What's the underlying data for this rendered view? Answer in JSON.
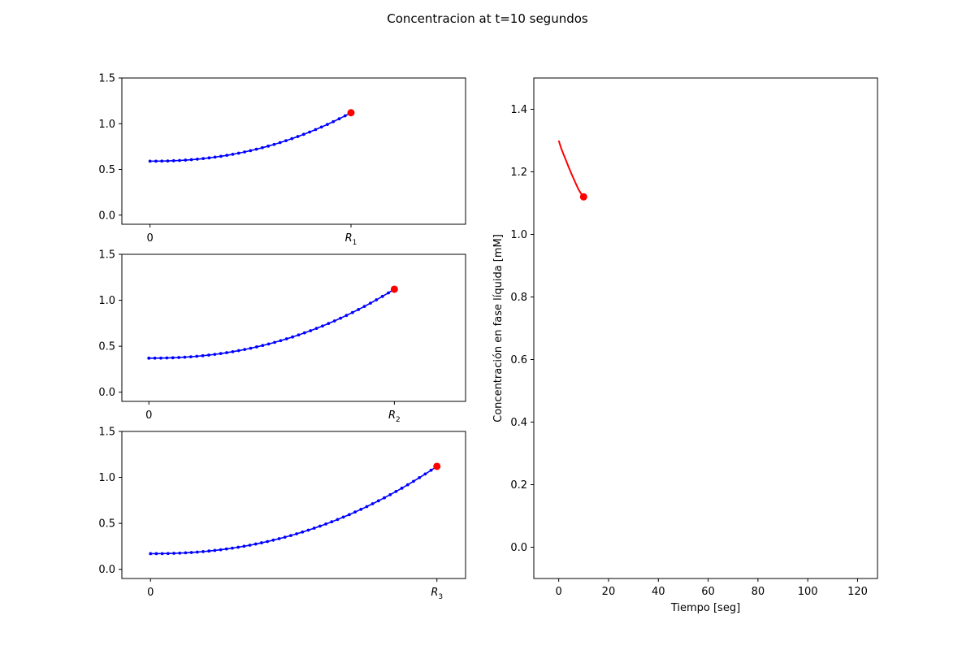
{
  "chart_data": {
    "title": "Concentracion at t=10 segundos",
    "colors": {
      "profile": "#0000ff",
      "marker": "#ff0000",
      "history": "#ff0000"
    },
    "subplots": [
      {
        "type": "line",
        "ylim": [
          -0.1,
          1.5
        ],
        "xlim": [
          -0.14,
          1.57
        ],
        "yticks": [
          0.0,
          0.5,
          1.0,
          1.5
        ],
        "ytick_labels": [
          "0.0",
          "0.5",
          "1.0",
          "1.5"
        ],
        "xticks": [
          0,
          1
        ],
        "xtick_labels": [
          "0",
          "R"
        ],
        "xtick_sub": [
          "",
          "1"
        ],
        "series": [
          {
            "center_value": 0.59,
            "surface_value": 1.12,
            "n_points": 35
          }
        ],
        "marker": {
          "x": 1,
          "y": 1.12
        }
      },
      {
        "type": "line",
        "ylim": [
          -0.1,
          1.5
        ],
        "xlim": [
          -0.11,
          1.29
        ],
        "yticks": [
          0.0,
          0.5,
          1.0,
          1.5
        ],
        "ytick_labels": [
          "0.0",
          "0.5",
          "1.0",
          "1.5"
        ],
        "xticks": [
          0,
          1
        ],
        "xtick_labels": [
          "0",
          "R"
        ],
        "xtick_sub": [
          "",
          "2"
        ],
        "series": [
          {
            "center_value": 0.37,
            "surface_value": 1.12,
            "n_points": 42
          }
        ],
        "marker": {
          "x": 1,
          "y": 1.12
        }
      },
      {
        "type": "line",
        "ylim": [
          -0.1,
          1.5
        ],
        "xlim": [
          -0.1,
          1.1
        ],
        "yticks": [
          0.0,
          0.5,
          1.0,
          1.5
        ],
        "ytick_labels": [
          "0.0",
          "0.5",
          "1.0",
          "1.5"
        ],
        "xticks": [
          0,
          1
        ],
        "xtick_labels": [
          "0",
          "R"
        ],
        "xtick_sub": [
          "",
          "3"
        ],
        "series": [
          {
            "center_value": 0.17,
            "surface_value": 1.12,
            "n_points": 50
          }
        ],
        "marker": {
          "x": 1,
          "y": 1.12
        }
      }
    ],
    "time_plot": {
      "type": "line",
      "xlabel": "Tiempo [seg]",
      "ylabel": "Concentración en fase líquida [mM]",
      "xlim": [
        -10,
        128
      ],
      "ylim": [
        -0.1,
        1.5
      ],
      "xticks": [
        0,
        20,
        40,
        60,
        80,
        100,
        120
      ],
      "xtick_labels": [
        "0",
        "20",
        "40",
        "60",
        "80",
        "100",
        "120"
      ],
      "yticks": [
        0.0,
        0.2,
        0.4,
        0.6,
        0.8,
        1.0,
        1.2,
        1.4
      ],
      "ytick_labels": [
        "0.0",
        "0.2",
        "0.4",
        "0.6",
        "0.8",
        "1.0",
        "1.2",
        "1.4"
      ],
      "series": [
        {
          "x": [
            0,
            1,
            2,
            3,
            4,
            5,
            6,
            7,
            8,
            9,
            10
          ],
          "y": [
            1.3,
            1.275,
            1.255,
            1.235,
            1.215,
            1.196,
            1.178,
            1.16,
            1.143,
            1.13,
            1.12
          ]
        }
      ],
      "marker": {
        "x": 10,
        "y": 1.12
      }
    }
  }
}
